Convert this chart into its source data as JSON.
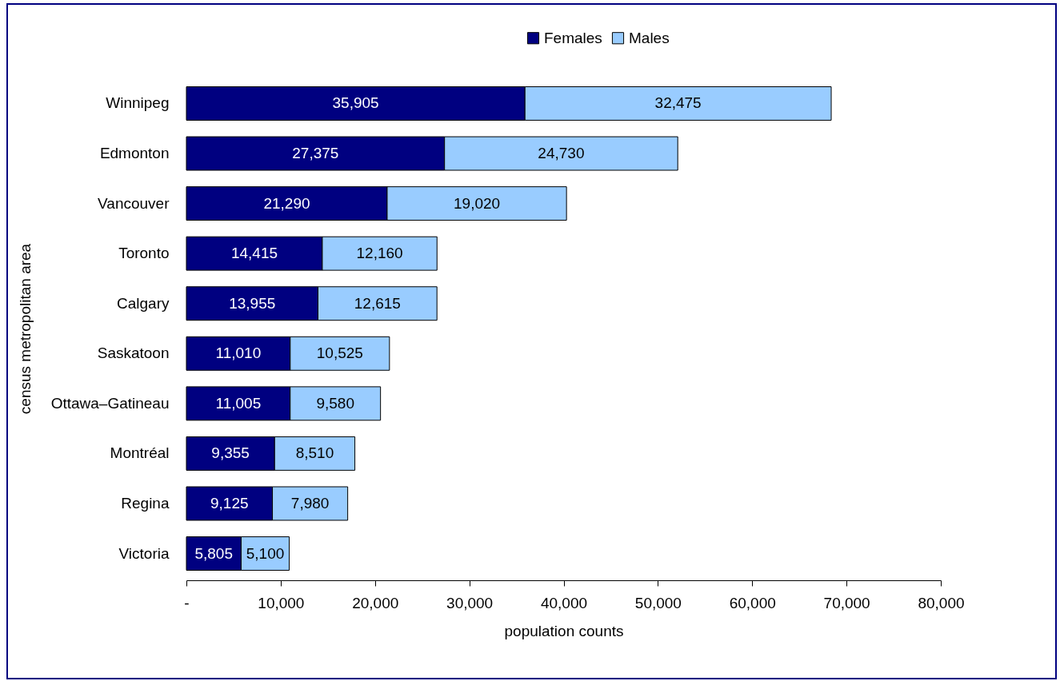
{
  "chart_data": {
    "type": "bar",
    "orientation": "horizontal",
    "stacked": true,
    "xlabel": "population counts",
    "ylabel": "census metropolitan area",
    "categories": [
      "Winnipeg",
      "Edmonton",
      "Vancouver",
      "Toronto",
      "Calgary",
      "Saskatoon",
      "Ottawa–Gatineau",
      "Montréal",
      "Regina",
      "Victoria"
    ],
    "series": [
      {
        "name": "Females",
        "color": "#000080",
        "values": [
          35905,
          27375,
          21290,
          14415,
          13955,
          11010,
          11005,
          9355,
          9125,
          5805
        ],
        "value_labels": [
          "35,905",
          "27,375",
          "21,290",
          "14,415",
          "13,955",
          "11,010",
          "11,005",
          "9,355",
          "9,125",
          "5,805"
        ]
      },
      {
        "name": "Males",
        "color": "#99ccff",
        "values": [
          32475,
          24730,
          19020,
          12160,
          12615,
          10525,
          9580,
          8510,
          7980,
          5100
        ],
        "value_labels": [
          "32,475",
          "24,730",
          "19,020",
          "12,160",
          "12,615",
          "10,525",
          "9,580",
          "8,510",
          "7,980",
          "5,100"
        ]
      }
    ],
    "xlim": [
      0,
      80000
    ],
    "xticks": [
      {
        "value": 0,
        "label": "-"
      },
      {
        "value": 10000,
        "label": "10,000"
      },
      {
        "value": 20000,
        "label": "20,000"
      },
      {
        "value": 30000,
        "label": "30,000"
      },
      {
        "value": 40000,
        "label": "40,000"
      },
      {
        "value": 50000,
        "label": "50,000"
      },
      {
        "value": 60000,
        "label": "60,000"
      },
      {
        "value": 70000,
        "label": "70,000"
      },
      {
        "value": 80000,
        "label": "80,000"
      }
    ],
    "legend": "top",
    "grid": false
  }
}
